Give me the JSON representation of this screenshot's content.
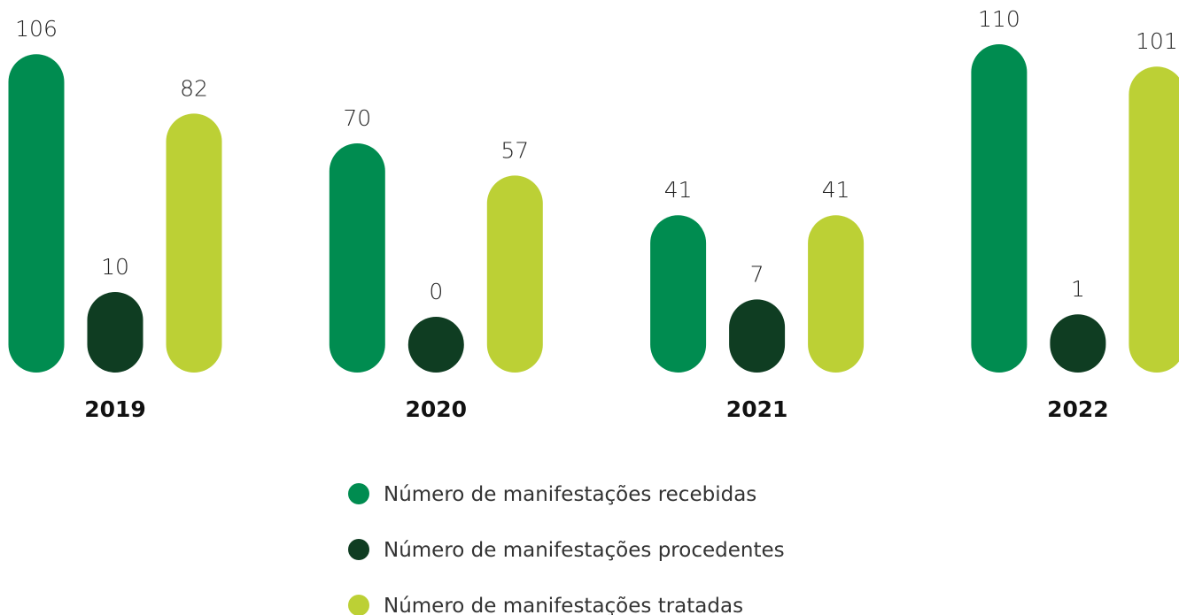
{
  "chart_data": {
    "type": "bar",
    "categories": [
      "2019",
      "2020",
      "2021",
      "2022"
    ],
    "series": [
      {
        "name": "Número de manifestações recebidas",
        "color": "#008c50",
        "values": [
          106,
          70,
          41,
          110
        ]
      },
      {
        "name": "Número de manifestações procedentes",
        "color": "#0f3d22",
        "values": [
          10,
          0,
          7,
          1
        ]
      },
      {
        "name": "Número de manifestações tratadas",
        "color": "#bcd035",
        "values": [
          82,
          57,
          41,
          101
        ]
      }
    ]
  }
}
